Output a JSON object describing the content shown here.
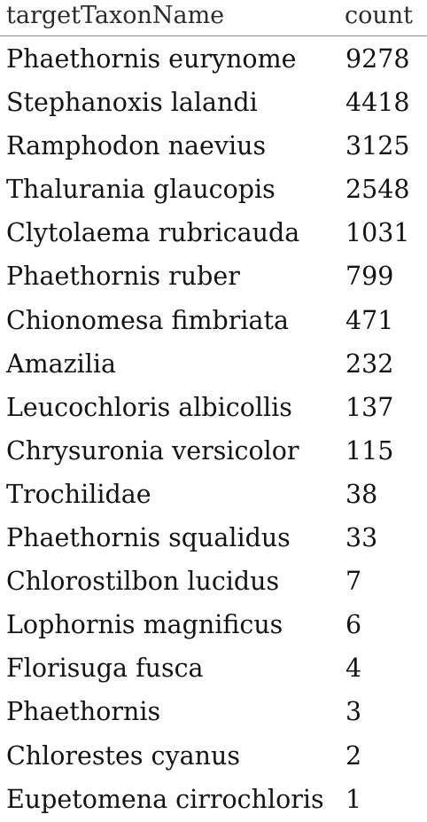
{
  "table": {
    "columns": [
      "targetTaxonName",
      "count"
    ],
    "rows": [
      {
        "name": "Phaethornis eurynome",
        "count": "9278"
      },
      {
        "name": "Stephanoxis lalandi",
        "count": "4418"
      },
      {
        "name": "Ramphodon naevius",
        "count": "3125"
      },
      {
        "name": "Thalurania glaucopis",
        "count": "2548"
      },
      {
        "name": "Clytolaema rubricauda",
        "count": "1031"
      },
      {
        "name": "Phaethornis ruber",
        "count": "799"
      },
      {
        "name": "Chionomesa fimbriata",
        "count": "471"
      },
      {
        "name": "Amazilia",
        "count": "232"
      },
      {
        "name": "Leucochloris albicollis",
        "count": "137"
      },
      {
        "name": "Chrysuronia versicolor",
        "count": "115"
      },
      {
        "name": "Trochilidae",
        "count": "38"
      },
      {
        "name": "Phaethornis squalidus",
        "count": "33"
      },
      {
        "name": "Chlorostilbon lucidus",
        "count": "7"
      },
      {
        "name": "Lophornis magnificus",
        "count": "6"
      },
      {
        "name": "Florisuga fusca",
        "count": "4"
      },
      {
        "name": "Phaethornis",
        "count": "3"
      },
      {
        "name": "Chlorestes cyanus",
        "count": "2"
      },
      {
        "name": "Eupetomena cirrochloris",
        "count": "1"
      }
    ]
  }
}
